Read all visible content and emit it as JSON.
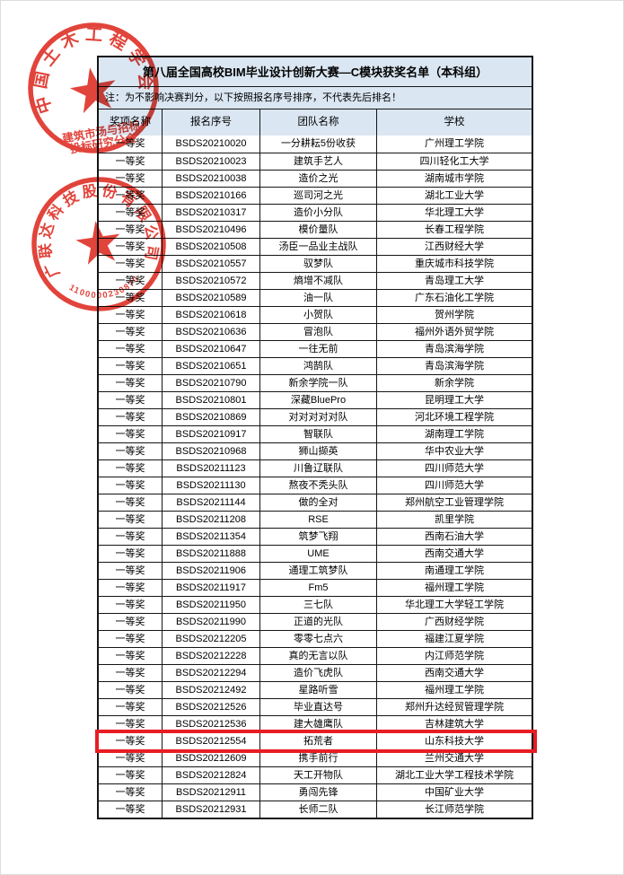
{
  "colors": {
    "header_bg": "#dae6f2",
    "table_border": "#151515",
    "stamp_red": "#dd2a20",
    "highlight_red": "#e81c24",
    "text": "#000000"
  },
  "table": {
    "title": "第八届全国高校BIM毕业设计创新大赛—C模块获奖名单（本科组）",
    "note": "注：为不影响决赛判分，以下按照报名序号排序，不代表先后排名！",
    "columns": [
      "奖项名称",
      "报名序号",
      "团队名称",
      "学校"
    ],
    "highlight_id": "BSDS20212554",
    "rows": [
      {
        "award": "一等奖",
        "id": "BSDS20210020",
        "team": "一分耕耘5份收获",
        "school": "广州理工学院"
      },
      {
        "award": "一等奖",
        "id": "BSDS20210023",
        "team": "建筑手艺人",
        "school": "四川轻化工大学"
      },
      {
        "award": "一等奖",
        "id": "BSDS20210038",
        "team": "造价之光",
        "school": "湖南城市学院"
      },
      {
        "award": "一等奖",
        "id": "BSDS20210166",
        "team": "巡司河之光",
        "school": "湖北工业大学"
      },
      {
        "award": "一等奖",
        "id": "BSDS20210317",
        "team": "造价小分队",
        "school": "华北理工大学"
      },
      {
        "award": "一等奖",
        "id": "BSDS20210496",
        "team": "模价量队",
        "school": "长春工程学院"
      },
      {
        "award": "一等奖",
        "id": "BSDS20210508",
        "team": "汤臣一品业主战队",
        "school": "江西财经大学"
      },
      {
        "award": "一等奖",
        "id": "BSDS20210557",
        "team": "驭梦队",
        "school": "重庆城市科技学院"
      },
      {
        "award": "一等奖",
        "id": "BSDS20210572",
        "team": "熵增不减队",
        "school": "青岛理工大学"
      },
      {
        "award": "一等奖",
        "id": "BSDS20210589",
        "team": "油一队",
        "school": "广东石油化工学院"
      },
      {
        "award": "一等奖",
        "id": "BSDS20210618",
        "team": "小贺队",
        "school": "贺州学院"
      },
      {
        "award": "一等奖",
        "id": "BSDS20210636",
        "team": "冒泡队",
        "school": "福州外语外贸学院"
      },
      {
        "award": "一等奖",
        "id": "BSDS20210647",
        "team": "一往无前",
        "school": "青岛滨海学院"
      },
      {
        "award": "一等奖",
        "id": "BSDS20210651",
        "team": "鸿鹄队",
        "school": "青岛滨海学院"
      },
      {
        "award": "一等奖",
        "id": "BSDS20210790",
        "team": "新余学院一队",
        "school": "新余学院"
      },
      {
        "award": "一等奖",
        "id": "BSDS20210801",
        "team": "深藏BluePro",
        "school": "昆明理工大学"
      },
      {
        "award": "一等奖",
        "id": "BSDS20210869",
        "team": "对对对对对队",
        "school": "河北环境工程学院"
      },
      {
        "award": "一等奖",
        "id": "BSDS20210917",
        "team": "智联队",
        "school": "湖南理工学院"
      },
      {
        "award": "一等奖",
        "id": "BSDS20210968",
        "team": "狮山撷英",
        "school": "华中农业大学"
      },
      {
        "award": "一等奖",
        "id": "BSDS20211123",
        "team": "川鲁辽联队",
        "school": "四川师范大学"
      },
      {
        "award": "一等奖",
        "id": "BSDS20211130",
        "team": "熬夜不秃头队",
        "school": "四川师范大学"
      },
      {
        "award": "一等奖",
        "id": "BSDS20211144",
        "team": "做的全对",
        "school": "郑州航空工业管理学院"
      },
      {
        "award": "一等奖",
        "id": "BSDS20211208",
        "team": "RSE",
        "school": "凯里学院"
      },
      {
        "award": "一等奖",
        "id": "BSDS20211354",
        "team": "筑梦飞翔",
        "school": "西南石油大学"
      },
      {
        "award": "一等奖",
        "id": "BSDS20211888",
        "team": "UME",
        "school": "西南交通大学"
      },
      {
        "award": "一等奖",
        "id": "BSDS20211906",
        "team": "通理工筑梦队",
        "school": "南通理工学院"
      },
      {
        "award": "一等奖",
        "id": "BSDS20211917",
        "team": "Fm5",
        "school": "福州理工学院"
      },
      {
        "award": "一等奖",
        "id": "BSDS20211950",
        "team": "三七队",
        "school": "华北理工大学轻工学院"
      },
      {
        "award": "一等奖",
        "id": "BSDS20211990",
        "team": "正道的光队",
        "school": "广西财经学院"
      },
      {
        "award": "一等奖",
        "id": "BSDS20212205",
        "team": "零零七点六",
        "school": "福建江夏学院"
      },
      {
        "award": "一等奖",
        "id": "BSDS20212228",
        "team": "真的无言以队",
        "school": "内江师范学院"
      },
      {
        "award": "一等奖",
        "id": "BSDS20212294",
        "team": "造价飞虎队",
        "school": "西南交通大学"
      },
      {
        "award": "一等奖",
        "id": "BSDS20212492",
        "team": "星路听雪",
        "school": "福州理工学院"
      },
      {
        "award": "一等奖",
        "id": "BSDS20212526",
        "team": "毕业直达号",
        "school": "郑州升达经贸管理学院"
      },
      {
        "award": "一等奖",
        "id": "BSDS20212536",
        "team": "建大雄鹰队",
        "school": "吉林建筑大学"
      },
      {
        "award": "一等奖",
        "id": "BSDS20212554",
        "team": "拓荒者",
        "school": "山东科技大学"
      },
      {
        "award": "一等奖",
        "id": "BSDS20212609",
        "team": "携手前行",
        "school": "兰州交通大学"
      },
      {
        "award": "一等奖",
        "id": "BSDS20212824",
        "team": "天工开物队",
        "school": "湖北工业大学工程技术学院"
      },
      {
        "award": "一等奖",
        "id": "BSDS20212911",
        "team": "勇闯先锋",
        "school": "中国矿业大学"
      },
      {
        "award": "一等奖",
        "id": "BSDS20212931",
        "team": "长师二队",
        "school": "长江师范学院"
      }
    ]
  },
  "stamps": {
    "stamp1": {
      "arc_text": "中国土木工程学会",
      "line1": "建筑市场与招标",
      "line2": "投标研究分会"
    },
    "stamp2": {
      "arc_text": "广联达科技股份有限公司",
      "number": "1100000230870"
    }
  }
}
